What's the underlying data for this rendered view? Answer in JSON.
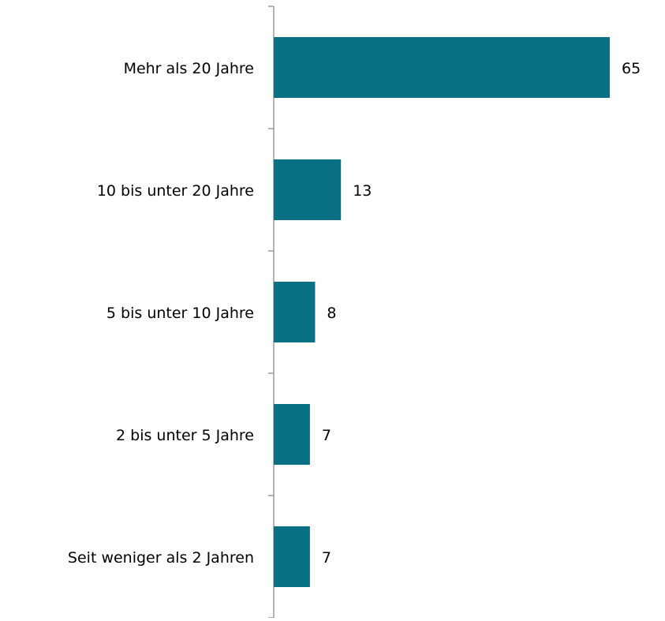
{
  "chart_data": {
    "type": "barh",
    "categories": [
      "Mehr als 20 Jahre",
      "10  bis unter 20 Jahre",
      "5 bis unter 10 Jahre",
      "2  bis unter 5 Jahre",
      "Seit weniger als 2 Jahren"
    ],
    "values": [
      65,
      13,
      8,
      7,
      7
    ],
    "color": "#0a7083"
  }
}
